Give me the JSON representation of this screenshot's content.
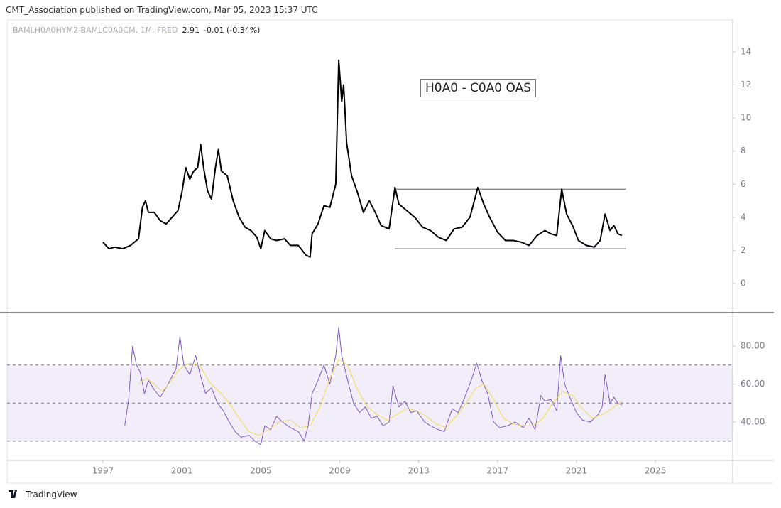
{
  "header": {
    "publisher": "CMT_Association published on TradingView.com, Mar 05, 2023 15:37 UTC",
    "last": "2.91",
    "change": "-0.01 (-0.34%)",
    "brand": "TradingView"
  },
  "chart_data": [
    {
      "type": "line",
      "annotation": "H0A0 - C0A0 OAS",
      "xlim": [
        1992.14,
        2028.92
      ],
      "ylim": [
        -1.76,
        15.93
      ],
      "yticks": [
        0,
        2,
        4,
        6,
        8,
        10,
        12,
        14
      ],
      "levels": [
        {
          "value": 5.7,
          "from": 2011.8,
          "to": 2023.5
        },
        {
          "value": 2.1,
          "from": 2011.8,
          "to": 2023.5
        }
      ],
      "series": [
        {
          "name": "BAMLH0A0HYM2-BAMLC0A0CM, 1M, FRED",
          "color": "#000000",
          "x": [
            1997.0,
            1997.3,
            1997.6,
            1998.0,
            1998.4,
            1998.8,
            1999.0,
            1999.15,
            1999.3,
            1999.6,
            1999.9,
            2000.2,
            2000.5,
            2000.8,
            2001.0,
            2001.2,
            2001.4,
            2001.6,
            2001.8,
            2001.95,
            2002.1,
            2002.3,
            2002.5,
            2002.7,
            2002.85,
            2003.0,
            2003.3,
            2003.6,
            2003.9,
            2004.2,
            2004.5,
            2004.8,
            2005.0,
            2005.2,
            2005.5,
            2005.8,
            2006.2,
            2006.5,
            2006.9,
            2007.3,
            2007.5,
            2007.6,
            2007.9,
            2008.2,
            2008.5,
            2008.8,
            2008.95,
            2009.1,
            2009.2,
            2009.35,
            2009.6,
            2009.9,
            2010.2,
            2010.5,
            2010.8,
            2011.1,
            2011.5,
            2011.8,
            2012.0,
            2012.4,
            2012.8,
            2013.2,
            2013.6,
            2014.0,
            2014.4,
            2014.8,
            2015.2,
            2015.6,
            2016.0,
            2016.3,
            2016.6,
            2017.0,
            2017.4,
            2017.8,
            2018.2,
            2018.6,
            2019.0,
            2019.4,
            2019.7,
            2020.0,
            2020.25,
            2020.5,
            2020.8,
            2021.1,
            2021.5,
            2021.9,
            2022.2,
            2022.45,
            2022.7,
            2022.9,
            2023.1,
            2023.3
          ],
          "values": [
            2.5,
            2.1,
            2.2,
            2.1,
            2.3,
            2.7,
            4.6,
            5.0,
            4.3,
            4.3,
            3.8,
            3.6,
            4.0,
            4.4,
            5.5,
            7.0,
            6.3,
            6.8,
            7.0,
            8.4,
            7.0,
            5.6,
            5.1,
            7.0,
            8.1,
            6.8,
            6.5,
            5.0,
            4.0,
            3.4,
            3.2,
            2.8,
            2.1,
            3.2,
            2.7,
            2.6,
            2.7,
            2.3,
            2.3,
            1.7,
            1.6,
            3.0,
            3.6,
            4.7,
            4.6,
            6.0,
            13.5,
            11.0,
            12.0,
            8.5,
            6.5,
            5.5,
            4.3,
            5.0,
            4.3,
            3.5,
            3.3,
            5.8,
            4.8,
            4.4,
            4.0,
            3.4,
            3.2,
            2.8,
            2.6,
            3.3,
            3.4,
            4.0,
            5.8,
            4.8,
            4.0,
            3.1,
            2.6,
            2.6,
            2.5,
            2.3,
            2.9,
            3.2,
            3.0,
            2.9,
            5.7,
            4.2,
            3.5,
            2.6,
            2.3,
            2.2,
            2.6,
            4.2,
            3.2,
            3.5,
            3.0,
            2.9
          ]
        }
      ]
    },
    {
      "type": "line",
      "xlim": [
        1992.14,
        2028.92
      ],
      "ylim": [
        19.8,
        97.6
      ],
      "xticks": [
        1997,
        2001,
        2005,
        2009,
        2013,
        2017,
        2021,
        2025
      ],
      "yticks": [
        {
          "value": 40,
          "label": "40.00"
        },
        {
          "value": 60,
          "label": "60.00"
        },
        {
          "value": 80,
          "label": "80.00"
        }
      ],
      "band": [
        30,
        70
      ],
      "hlines": [
        70,
        50,
        30
      ],
      "series": [
        {
          "color": "#7e57c2",
          "x": [
            1998.1,
            1998.3,
            1998.5,
            1998.7,
            1998.9,
            1999.1,
            1999.3,
            1999.6,
            1999.9,
            2000.3,
            2000.7,
            2000.9,
            2001.1,
            2001.4,
            2001.7,
            2001.9,
            2002.2,
            2002.5,
            2002.8,
            2003.1,
            2003.4,
            2003.7,
            2004.0,
            2004.4,
            2004.7,
            2005.0,
            2005.2,
            2005.5,
            2005.8,
            2006.1,
            2006.5,
            2006.9,
            2007.2,
            2007.4,
            2007.6,
            2007.9,
            2008.2,
            2008.5,
            2008.8,
            2008.95,
            2009.1,
            2009.4,
            2009.7,
            2010.0,
            2010.3,
            2010.6,
            2010.9,
            2011.2,
            2011.5,
            2011.7,
            2012.0,
            2012.3,
            2012.6,
            2012.9,
            2013.3,
            2013.6,
            2014.0,
            2014.3,
            2014.7,
            2015.0,
            2015.3,
            2015.7,
            2015.95,
            2016.2,
            2016.5,
            2016.8,
            2017.1,
            2017.5,
            2017.9,
            2018.3,
            2018.6,
            2018.9,
            2019.2,
            2019.4,
            2019.7,
            2020.0,
            2020.2,
            2020.4,
            2020.7,
            2021.0,
            2021.3,
            2021.7,
            2022.1,
            2022.3,
            2022.45,
            2022.7,
            2022.9,
            2023.1,
            2023.3
          ],
          "values": [
            38,
            52,
            80,
            70,
            66,
            55,
            62,
            57,
            53,
            60,
            68,
            85,
            70,
            65,
            75,
            66,
            55,
            58,
            50,
            46,
            40,
            35,
            32,
            33,
            30,
            28,
            38,
            36,
            43,
            40,
            37,
            35,
            30,
            38,
            55,
            62,
            70,
            60,
            75,
            90,
            75,
            62,
            50,
            45,
            48,
            42,
            43,
            38,
            40,
            59,
            48,
            51,
            45,
            46,
            40,
            38,
            36,
            35,
            47,
            45,
            52,
            63,
            71,
            62,
            55,
            40,
            37,
            38,
            40,
            37,
            42,
            36,
            54,
            51,
            52,
            46,
            75,
            60,
            52,
            45,
            41,
            40,
            44,
            48,
            65,
            50,
            53,
            50,
            49
          ]
        },
        {
          "color": "#f5d94a",
          "x": [
            1998.8,
            1999.2,
            1999.6,
            2000.0,
            2000.4,
            2000.9,
            2001.4,
            2001.9,
            2002.4,
            2002.9,
            2003.4,
            2003.9,
            2004.4,
            2004.9,
            2005.4,
            2005.9,
            2006.5,
            2007.0,
            2007.5,
            2008.0,
            2008.5,
            2008.95,
            2009.4,
            2009.9,
            2010.4,
            2010.9,
            2011.4,
            2011.9,
            2012.4,
            2012.9,
            2013.4,
            2013.9,
            2014.4,
            2014.9,
            2015.4,
            2015.9,
            2016.3,
            2016.8,
            2017.3,
            2017.8,
            2018.3,
            2018.8,
            2019.3,
            2019.8,
            2020.3,
            2020.8,
            2021.3,
            2021.8,
            2022.3,
            2022.8,
            2023.3
          ],
          "values": [
            60,
            63,
            60,
            56,
            61,
            68,
            71,
            70,
            61,
            56,
            50,
            42,
            35,
            33,
            36,
            40,
            41,
            37,
            38,
            48,
            63,
            73,
            70,
            57,
            48,
            44,
            41,
            44,
            47,
            46,
            43,
            39,
            37,
            43,
            50,
            58,
            60,
            52,
            42,
            39,
            38,
            38,
            42,
            50,
            56,
            54,
            47,
            42,
            44,
            47,
            51
          ]
        }
      ]
    }
  ]
}
